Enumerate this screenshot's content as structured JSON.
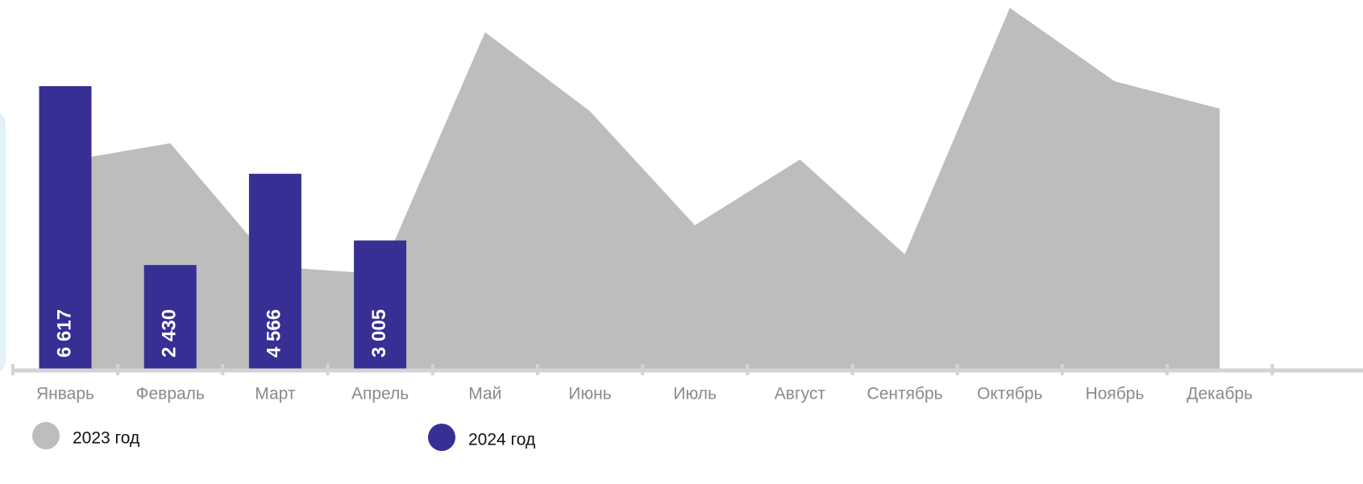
{
  "chart_data": {
    "type": "bar-area",
    "categories": [
      "Январь",
      "Февраль",
      "Март",
      "Апрель",
      "Май",
      "Июнь",
      "Июль",
      "Август",
      "Сентябрь",
      "Октябрь",
      "Ноябрь",
      "Декабрь"
    ],
    "series": [
      {
        "name": "2023 год",
        "type": "area",
        "color": "#bdbdbd",
        "values": [
          4860,
          5280,
          2390,
          2220,
          7880,
          6030,
          3360,
          4900,
          2680,
          8450,
          6730,
          6090
        ]
      },
      {
        "name": "2024 год",
        "type": "bar",
        "color": "#372f94",
        "values": [
          6617,
          2430,
          4566,
          3005,
          null,
          null,
          null,
          null,
          null,
          null,
          null,
          null
        ],
        "value_labels": [
          "6 617",
          "2 430",
          "4 566",
          "3 005",
          null,
          null,
          null,
          null,
          null,
          null,
          null,
          null
        ]
      }
    ]
  }
}
